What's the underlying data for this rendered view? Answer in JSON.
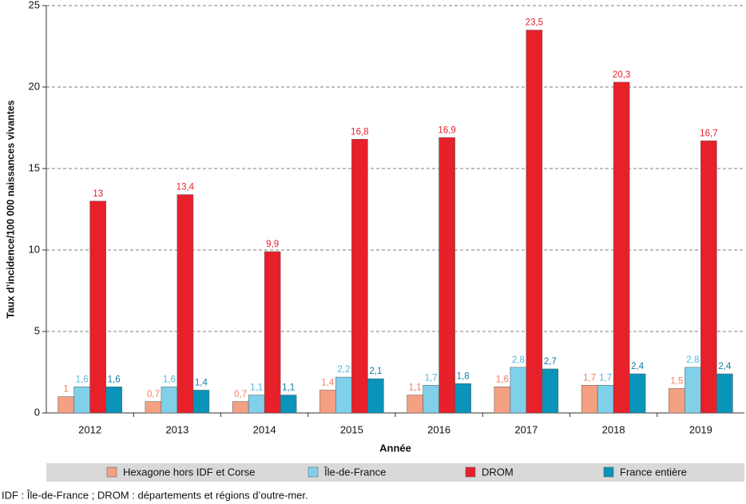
{
  "chart_data": {
    "type": "bar",
    "y_label": "Taux d’incidence/100 000 naissances vivantes",
    "x_label": "Année",
    "note": "IDF : Île-de-France ; DROM : départements et régions d’outre-mer.",
    "categories": [
      "2012",
      "2013",
      "2014",
      "2015",
      "2016",
      "2017",
      "2018",
      "2019"
    ],
    "series": [
      {
        "name": "Hexagone hors IDF et Corse",
        "color": "#f4a082",
        "label_color": "#ef7e5e",
        "values": [
          1,
          0.7,
          0.7,
          1.4,
          1.1,
          1.6,
          1.7,
          1.5
        ],
        "value_labels": [
          "1",
          "0,7",
          "0,7",
          "1,4",
          "1,1",
          "1,6",
          "1,7",
          "1,5"
        ]
      },
      {
        "name": "Île-de-France",
        "color": "#80d0ea",
        "label_color": "#4fb8d8",
        "values": [
          1.6,
          1.6,
          1.1,
          2.2,
          1.7,
          2.8,
          1.7,
          2.8
        ],
        "value_labels": [
          "1,6",
          "1,6",
          "1,1",
          "2,2",
          "1,7",
          "2,8",
          "1,7",
          "2,8"
        ]
      },
      {
        "name": "DROM",
        "color": "#e8202a",
        "label_color": "#e8202a",
        "values": [
          13,
          13.4,
          9.9,
          16.8,
          16.9,
          23.5,
          20.3,
          16.7
        ],
        "value_labels": [
          "13",
          "13,4",
          "9,9",
          "16,8",
          "16,9",
          "23,5",
          "20,3",
          "16,7"
        ]
      },
      {
        "name": "France entière",
        "color": "#0b94ba",
        "label_color": "#0a7fa8",
        "values": [
          1.6,
          1.4,
          1.1,
          2.1,
          1.8,
          2.7,
          2.4,
          2.4
        ],
        "value_labels": [
          "1,6",
          "1,4",
          "1,1",
          "2,1",
          "1,8",
          "2,7",
          "2,4",
          "2,4"
        ]
      }
    ],
    "ylim": [
      0,
      25
    ],
    "yticks": [
      0,
      5,
      10,
      15,
      20,
      25
    ],
    "grid": true
  }
}
